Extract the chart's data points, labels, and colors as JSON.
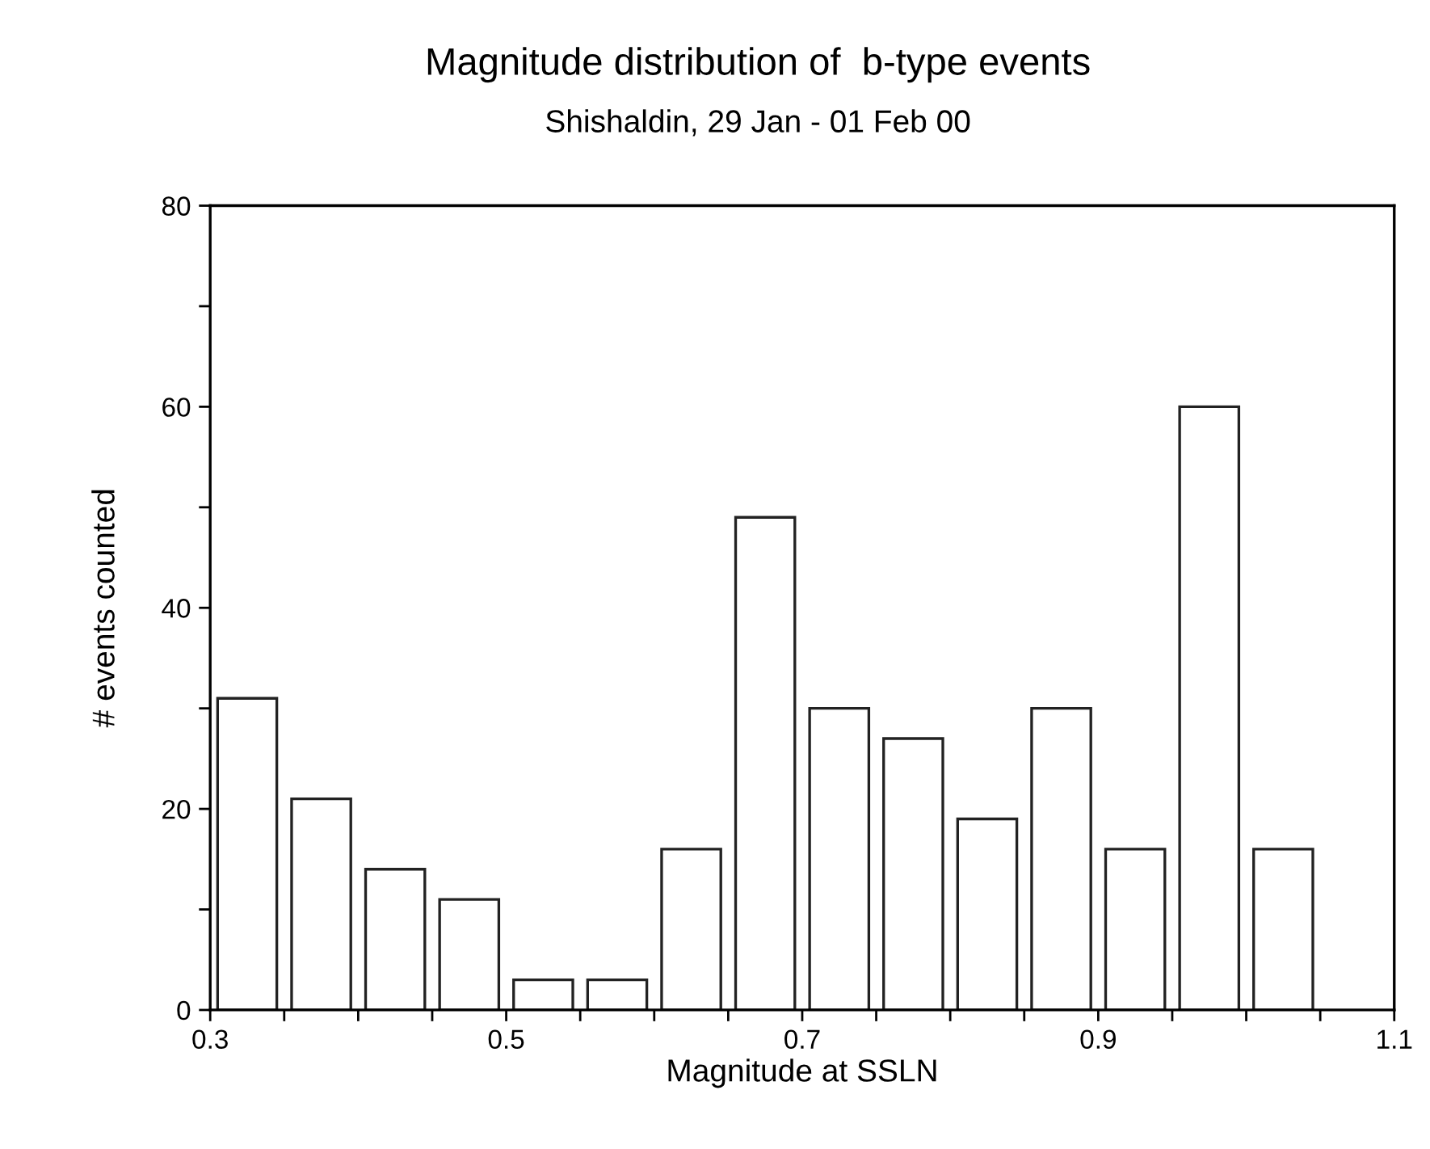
{
  "chart_data": {
    "type": "histogram",
    "title": "Magnitude distribution of  b-type events",
    "subtitle": "Shishaldin, 29 Jan - 01 Feb 00",
    "xlabel": "Magnitude at SSLN",
    "ylabel": "# events counted",
    "bins": [
      0.3,
      0.35,
      0.4,
      0.45,
      0.5,
      0.55,
      0.6,
      0.65,
      0.7,
      0.75,
      0.8,
      0.85,
      0.9,
      0.95,
      1.0,
      1.05
    ],
    "values": [
      31,
      21,
      14,
      11,
      3,
      3,
      16,
      49,
      30,
      27,
      19,
      30,
      16,
      60,
      16
    ],
    "color": "#ffffff",
    "xlim": [
      0.3,
      1.1
    ],
    "xticks": [
      0.3,
      {
        "value": 0.35,
        "label": null
      },
      {
        "value": 0.4,
        "label": null
      },
      {
        "value": 0.45,
        "label": null
      },
      0.5,
      {
        "value": 0.55,
        "label": null
      },
      {
        "value": 0.6,
        "label": null
      },
      {
        "value": 0.65,
        "label": null
      },
      0.7,
      {
        "value": 0.75,
        "label": null
      },
      {
        "value": 0.8,
        "label": null
      },
      {
        "value": 0.85,
        "label": null
      },
      0.9,
      {
        "value": 0.95,
        "label": null
      },
      {
        "value": 1.0,
        "label": null
      },
      {
        "value": 1.05,
        "label": null
      },
      1.1
    ],
    "ylim": [
      0,
      80
    ],
    "yticks": [
      0,
      {
        "value": 10,
        "label": null
      },
      20,
      {
        "value": 30,
        "label": null
      },
      40,
      {
        "value": 50,
        "label": null
      },
      60,
      {
        "value": 70,
        "label": null
      },
      80
    ],
    "grid": false
  }
}
